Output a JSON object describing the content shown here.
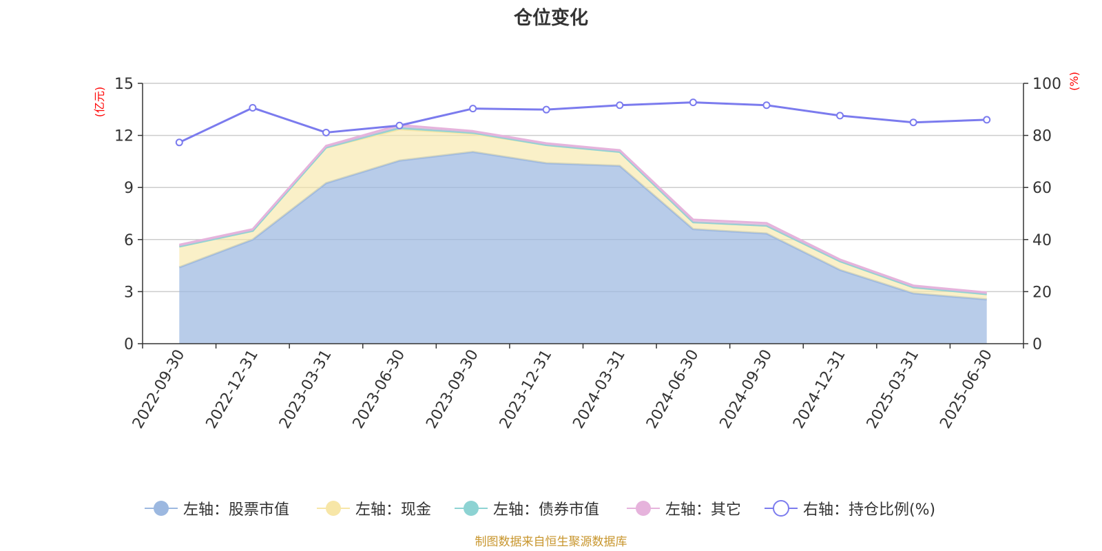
{
  "title": "仓位变化",
  "source": "制图数据来自恒生聚源数据库",
  "colors": {
    "stock": "#9cb8e0",
    "cash": "#f7e6a7",
    "bond": "#8dd3d3",
    "other": "#e6b3dc",
    "ratio": "#7b7bee",
    "axis_name": "#ff0000"
  },
  "chart_data": {
    "type": "area",
    "title": "仓位变化",
    "x": [
      "2022-09-30",
      "2022-12-31",
      "2023-03-31",
      "2023-06-30",
      "2023-09-30",
      "2023-12-31",
      "2024-03-31",
      "2024-06-30",
      "2024-09-30",
      "2024-12-31",
      "2025-03-31",
      "2025-06-30"
    ],
    "y_left": {
      "name": "(亿元)",
      "min": 0,
      "max": 15,
      "ticks": [
        0,
        3,
        6,
        9,
        12,
        15
      ]
    },
    "y_right": {
      "name": "(%)",
      "min": 0,
      "max": 100,
      "ticks": [
        0,
        20,
        40,
        60,
        80,
        100
      ]
    },
    "stacked": true,
    "grid": true,
    "legend_position": "bottom",
    "series": [
      {
        "name": "左轴：股票市值",
        "axis": "left",
        "icon": "filled-circle",
        "values": [
          4.4,
          6.0,
          9.25,
          10.55,
          11.05,
          10.4,
          10.25,
          6.6,
          6.35,
          4.25,
          2.9,
          2.55
        ]
      },
      {
        "name": "左轴：现金",
        "axis": "left",
        "icon": "filled-circle",
        "values": [
          1.2,
          0.5,
          2.05,
          1.8,
          1.05,
          1.05,
          0.8,
          0.4,
          0.45,
          0.5,
          0.35,
          0.3
        ]
      },
      {
        "name": "左轴：债券市值",
        "axis": "left",
        "icon": "filled-circle",
        "values": [
          0,
          0,
          0,
          0.1,
          0.05,
          0,
          0,
          0,
          0,
          0,
          0,
          0
        ]
      },
      {
        "name": "左轴：其它",
        "axis": "left",
        "icon": "filled-circle",
        "values": [
          0.1,
          0.1,
          0.1,
          0.15,
          0.1,
          0.1,
          0.1,
          0.15,
          0.15,
          0.1,
          0.1,
          0.1
        ]
      },
      {
        "name": "右轴：持仓比例(%)",
        "axis": "right",
        "type": "line",
        "icon": "hollow-circle",
        "values": [
          77.3,
          90.6,
          81.1,
          83.8,
          90.3,
          89.9,
          91.6,
          92.7,
          91.6,
          87.6,
          85.0,
          86.0
        ]
      }
    ]
  }
}
